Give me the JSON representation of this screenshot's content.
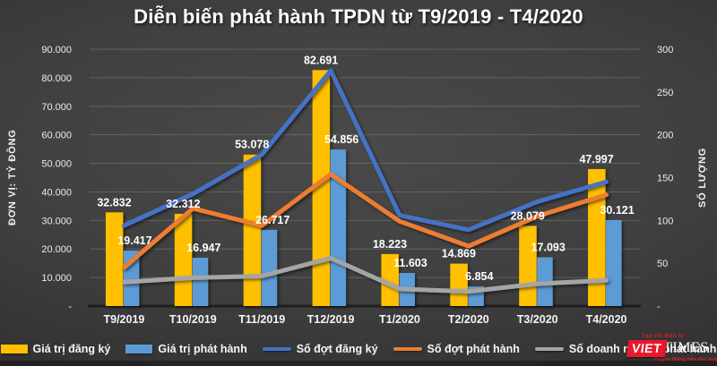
{
  "chart_data": {
    "type": "bar",
    "subtype": "combo-bar-line-dual-axis",
    "title": "Diễn biến phát hành TPDN từ T9/2019 - T4/2020",
    "categories": [
      "T9/2019",
      "T10/2019",
      "T11/2019",
      "T12/2019",
      "T1/2020",
      "T2/2020",
      "T3/2020",
      "T4/2020"
    ],
    "left_axis": {
      "title": "ĐƠN VỊ: TỶ ĐỒNG",
      "min": 0,
      "max": 90000,
      "tick_values": [
        90000,
        80000,
        70000,
        60000,
        50000,
        40000,
        30000,
        20000,
        10000,
        0
      ],
      "tick_labels": [
        "90.000",
        "80.000",
        "70.000",
        "60.000",
        "50.000",
        "40.000",
        "30.000",
        "20.000",
        "10.000",
        "-"
      ]
    },
    "right_axis": {
      "title": "SỐ LƯỢNG",
      "min": 0,
      "max": 300,
      "tick_values": [
        300,
        250,
        200,
        150,
        100,
        50,
        0
      ],
      "tick_labels": [
        "300",
        "250",
        "200",
        "150",
        "100",
        "50",
        "-"
      ]
    },
    "grid": true,
    "legend_position": "bottom",
    "bar_series": [
      {
        "name": "Giá trị đăng ký",
        "color": "#FFC000",
        "axis": "left",
        "values": [
          32832,
          32312,
          53078,
          82691,
          18223,
          14869,
          28079,
          47997
        ],
        "labels": [
          "32.832",
          "32.312",
          "53.078",
          "82.691",
          "18.223",
          "14.869",
          "28.079",
          "47.997"
        ]
      },
      {
        "name": "Giá trị phát hành",
        "color": "#5B9BD5",
        "axis": "left",
        "values": [
          19417,
          16947,
          26717,
          54856,
          11603,
          6854,
          17093,
          30121
        ],
        "labels": [
          "19.417",
          "16.947",
          "26.717",
          "54.856",
          "11.603",
          "6.854",
          "17.093",
          "30.121"
        ]
      }
    ],
    "line_series": [
      {
        "name": "Số đợt đăng ký",
        "color": "#4472C4",
        "axis": "right",
        "values": [
          94,
          131,
          177,
          275,
          106,
          89,
          122,
          145
        ]
      },
      {
        "name": "Số đợt phát hành",
        "color": "#ED7D31",
        "axis": "right",
        "values": [
          45,
          114,
          94,
          154,
          99,
          70,
          105,
          130
        ]
      },
      {
        "name": "Số doanh nghiệp phát hành",
        "color": "#A5A5A5",
        "axis": "right",
        "values": [
          28,
          33,
          35,
          56,
          20,
          17,
          26,
          30
        ]
      }
    ]
  },
  "logo": {
    "tagline_top": "Tạp chí điện tử",
    "viet": "VIET",
    "times": "TIMES",
    "tagline_bottom": "Truyền thông trên nền tảng số"
  }
}
